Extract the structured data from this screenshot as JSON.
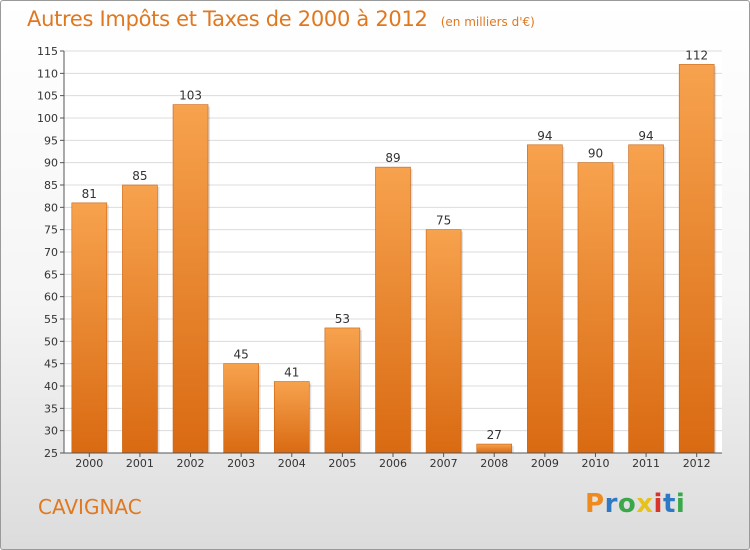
{
  "chart_data": {
    "type": "bar",
    "title": "Autres Impôts et Taxes de 2000 à 2012",
    "unit": "(en milliers d'€)",
    "categories": [
      "2000",
      "2001",
      "2002",
      "2003",
      "2004",
      "2005",
      "2006",
      "2007",
      "2008",
      "2009",
      "2010",
      "2011",
      "2012"
    ],
    "values": [
      81,
      85,
      103,
      45,
      41,
      53,
      89,
      75,
      27,
      94,
      90,
      94,
      112
    ],
    "ylim": [
      25,
      115
    ],
    "yticks": [
      25,
      30,
      35,
      40,
      45,
      50,
      55,
      60,
      65,
      70,
      75,
      80,
      85,
      90,
      95,
      100,
      105,
      110,
      115
    ],
    "xlabel": "",
    "ylabel": "",
    "grid": true,
    "bar_color_top": "#f7a24e",
    "bar_color_bottom": "#d96a12",
    "accent_color": "#e07820"
  },
  "commune": "CAVIGNAC",
  "brand": {
    "letters": [
      "P",
      "r",
      "o",
      "x",
      "i",
      "t",
      "i"
    ],
    "colors": [
      "#f08a1e",
      "#2f78c4",
      "#3aa84a",
      "#e8c21a",
      "#d8352a",
      "#2f78c4",
      "#3aa84a"
    ]
  }
}
